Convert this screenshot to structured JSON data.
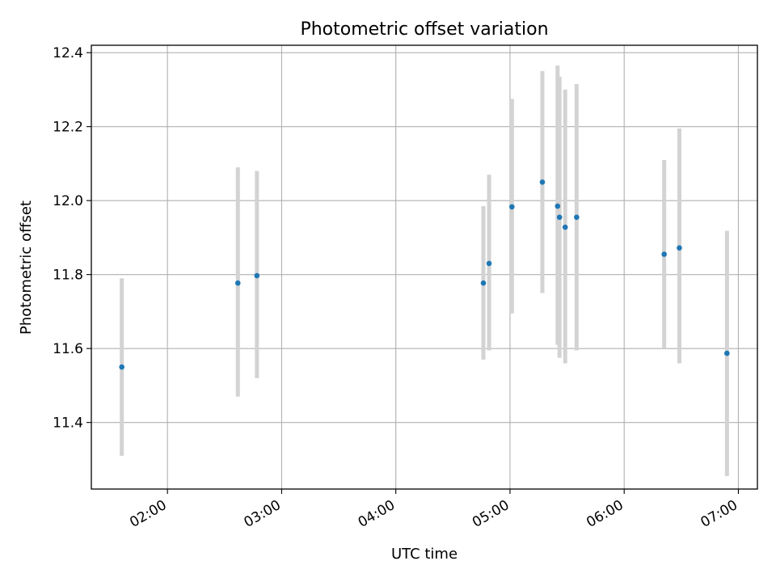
{
  "chart_data": {
    "type": "scatter",
    "title": "Photometric offset variation",
    "xlabel": "UTC time",
    "ylabel": "Photometric offset",
    "grid": true,
    "xlim": [
      "01:20",
      "07:10"
    ],
    "ylim": [
      11.22,
      12.42
    ],
    "x_ticks": [
      "02:00",
      "03:00",
      "04:00",
      "05:00",
      "06:00",
      "07:00"
    ],
    "y_ticks": [
      11.4,
      11.6,
      11.8,
      12.0,
      12.2,
      12.4
    ],
    "y_tick_labels": [
      "11.4",
      "11.6",
      "11.8",
      "12.0",
      "12.2",
      "12.4"
    ],
    "colors": {
      "point": "#1f77b4",
      "errorbar": "#d3d3d3",
      "grid": "#b0b0b0"
    },
    "points": [
      {
        "time": "01:36",
        "y": 11.55,
        "y_low": 11.31,
        "y_high": 11.79
      },
      {
        "time": "02:37",
        "y": 11.777,
        "y_low": 11.47,
        "y_high": 12.09
      },
      {
        "time": "02:47",
        "y": 11.797,
        "y_low": 11.52,
        "y_high": 12.08
      },
      {
        "time": "04:46",
        "y": 11.777,
        "y_low": 11.57,
        "y_high": 11.985
      },
      {
        "time": "04:49",
        "y": 11.83,
        "y_low": 11.595,
        "y_high": 12.07
      },
      {
        "time": "05:01",
        "y": 11.983,
        "y_low": 11.695,
        "y_high": 12.275
      },
      {
        "time": "05:17",
        "y": 12.05,
        "y_low": 11.75,
        "y_high": 12.35
      },
      {
        "time": "05:25",
        "y": 11.985,
        "y_low": 11.61,
        "y_high": 12.365
      },
      {
        "time": "05:26",
        "y": 11.955,
        "y_low": 11.575,
        "y_high": 12.335
      },
      {
        "time": "05:29",
        "y": 11.928,
        "y_low": 11.56,
        "y_high": 12.3
      },
      {
        "time": "05:35",
        "y": 11.955,
        "y_low": 11.595,
        "y_high": 12.315
      },
      {
        "time": "06:21",
        "y": 11.855,
        "y_low": 11.6,
        "y_high": 12.11
      },
      {
        "time": "06:29",
        "y": 11.872,
        "y_low": 11.56,
        "y_high": 12.195
      },
      {
        "time": "06:54",
        "y": 11.587,
        "y_low": 11.255,
        "y_high": 11.918
      }
    ]
  }
}
